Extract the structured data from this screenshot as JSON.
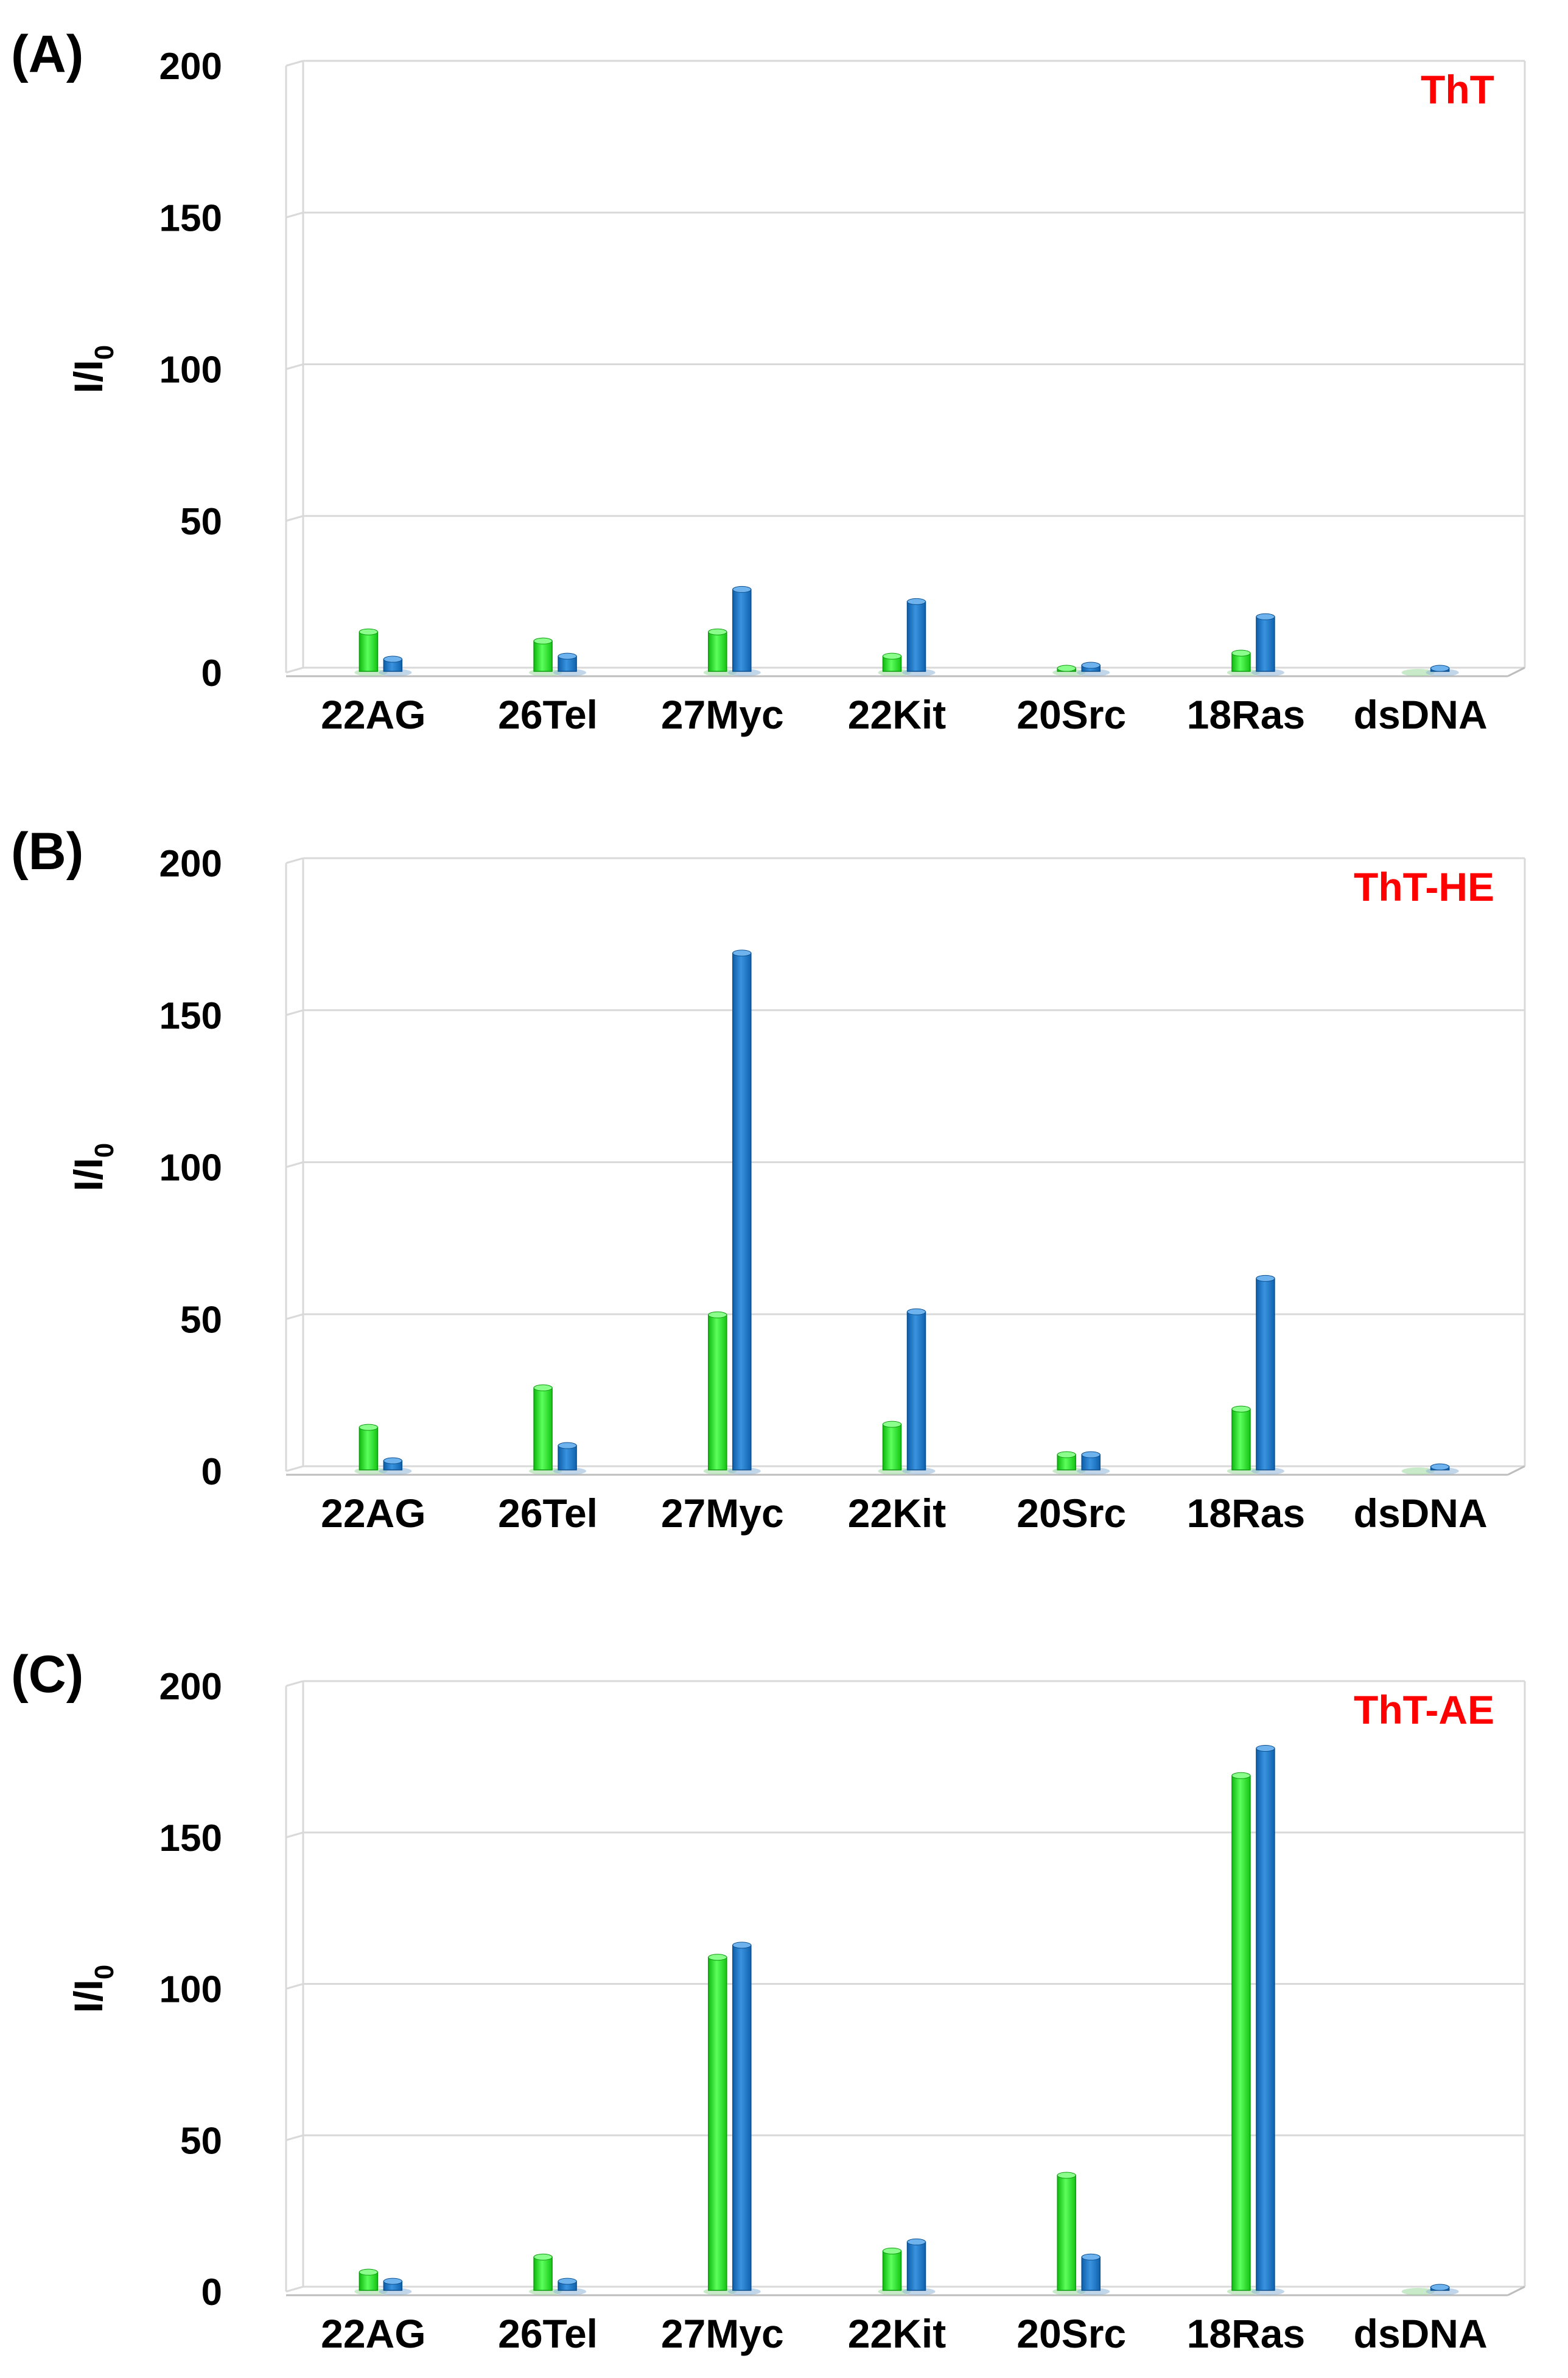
{
  "colors": {
    "series_green": "#22dd22",
    "series_blue": "#1a73c9",
    "title_red": "#ff0000",
    "grid": "#d9d9d9",
    "text": "#000000"
  },
  "chart_data": [
    {
      "panel_label": "(A)",
      "type": "bar",
      "title": "ThT",
      "ylabel": "I/I",
      "ylabel_sub": "0",
      "categories": [
        "22AG",
        "26Tel",
        "27Myc",
        "22Kit",
        "20Src",
        "18Ras",
        "dsDNA"
      ],
      "series": [
        {
          "name": "series-green",
          "values": [
            13,
            10,
            13,
            5,
            1,
            6,
            0
          ]
        },
        {
          "name": "series-blue",
          "values": [
            4,
            5,
            27,
            23,
            2,
            18,
            1
          ]
        }
      ],
      "ylim": [
        0,
        200
      ],
      "yticks": [
        "0",
        "50",
        "100",
        "150",
        "200"
      ]
    },
    {
      "panel_label": "(B)",
      "type": "bar",
      "title": "ThT-HE",
      "ylabel": "I/I",
      "ylabel_sub": "0",
      "categories": [
        "22AG",
        "26Tel",
        "27Myc",
        "22Kit",
        "20Src",
        "18Ras",
        "dsDNA"
      ],
      "series": [
        {
          "name": "series-green",
          "values": [
            14,
            27,
            51,
            15,
            5,
            20,
            0
          ]
        },
        {
          "name": "series-blue",
          "values": [
            3,
            8,
            170,
            52,
            5,
            63,
            1
          ]
        }
      ],
      "ylim": [
        0,
        200
      ],
      "yticks": [
        "0",
        "50",
        "100",
        "150",
        "200"
      ]
    },
    {
      "panel_label": "(C)",
      "type": "bar",
      "title": "ThT-AE",
      "ylabel": "I/I",
      "ylabel_sub": "0",
      "categories": [
        "22AG",
        "26Tel",
        "27Myc",
        "22Kit",
        "20Src",
        "18Ras",
        "dsDNA"
      ],
      "series": [
        {
          "name": "series-green",
          "values": [
            6,
            11,
            110,
            13,
            38,
            170,
            0
          ]
        },
        {
          "name": "series-blue",
          "values": [
            3,
            3,
            114,
            16,
            11,
            179,
            1
          ]
        }
      ],
      "ylim": [
        0,
        200
      ],
      "yticks": [
        "0",
        "50",
        "100",
        "150",
        "200"
      ]
    }
  ]
}
